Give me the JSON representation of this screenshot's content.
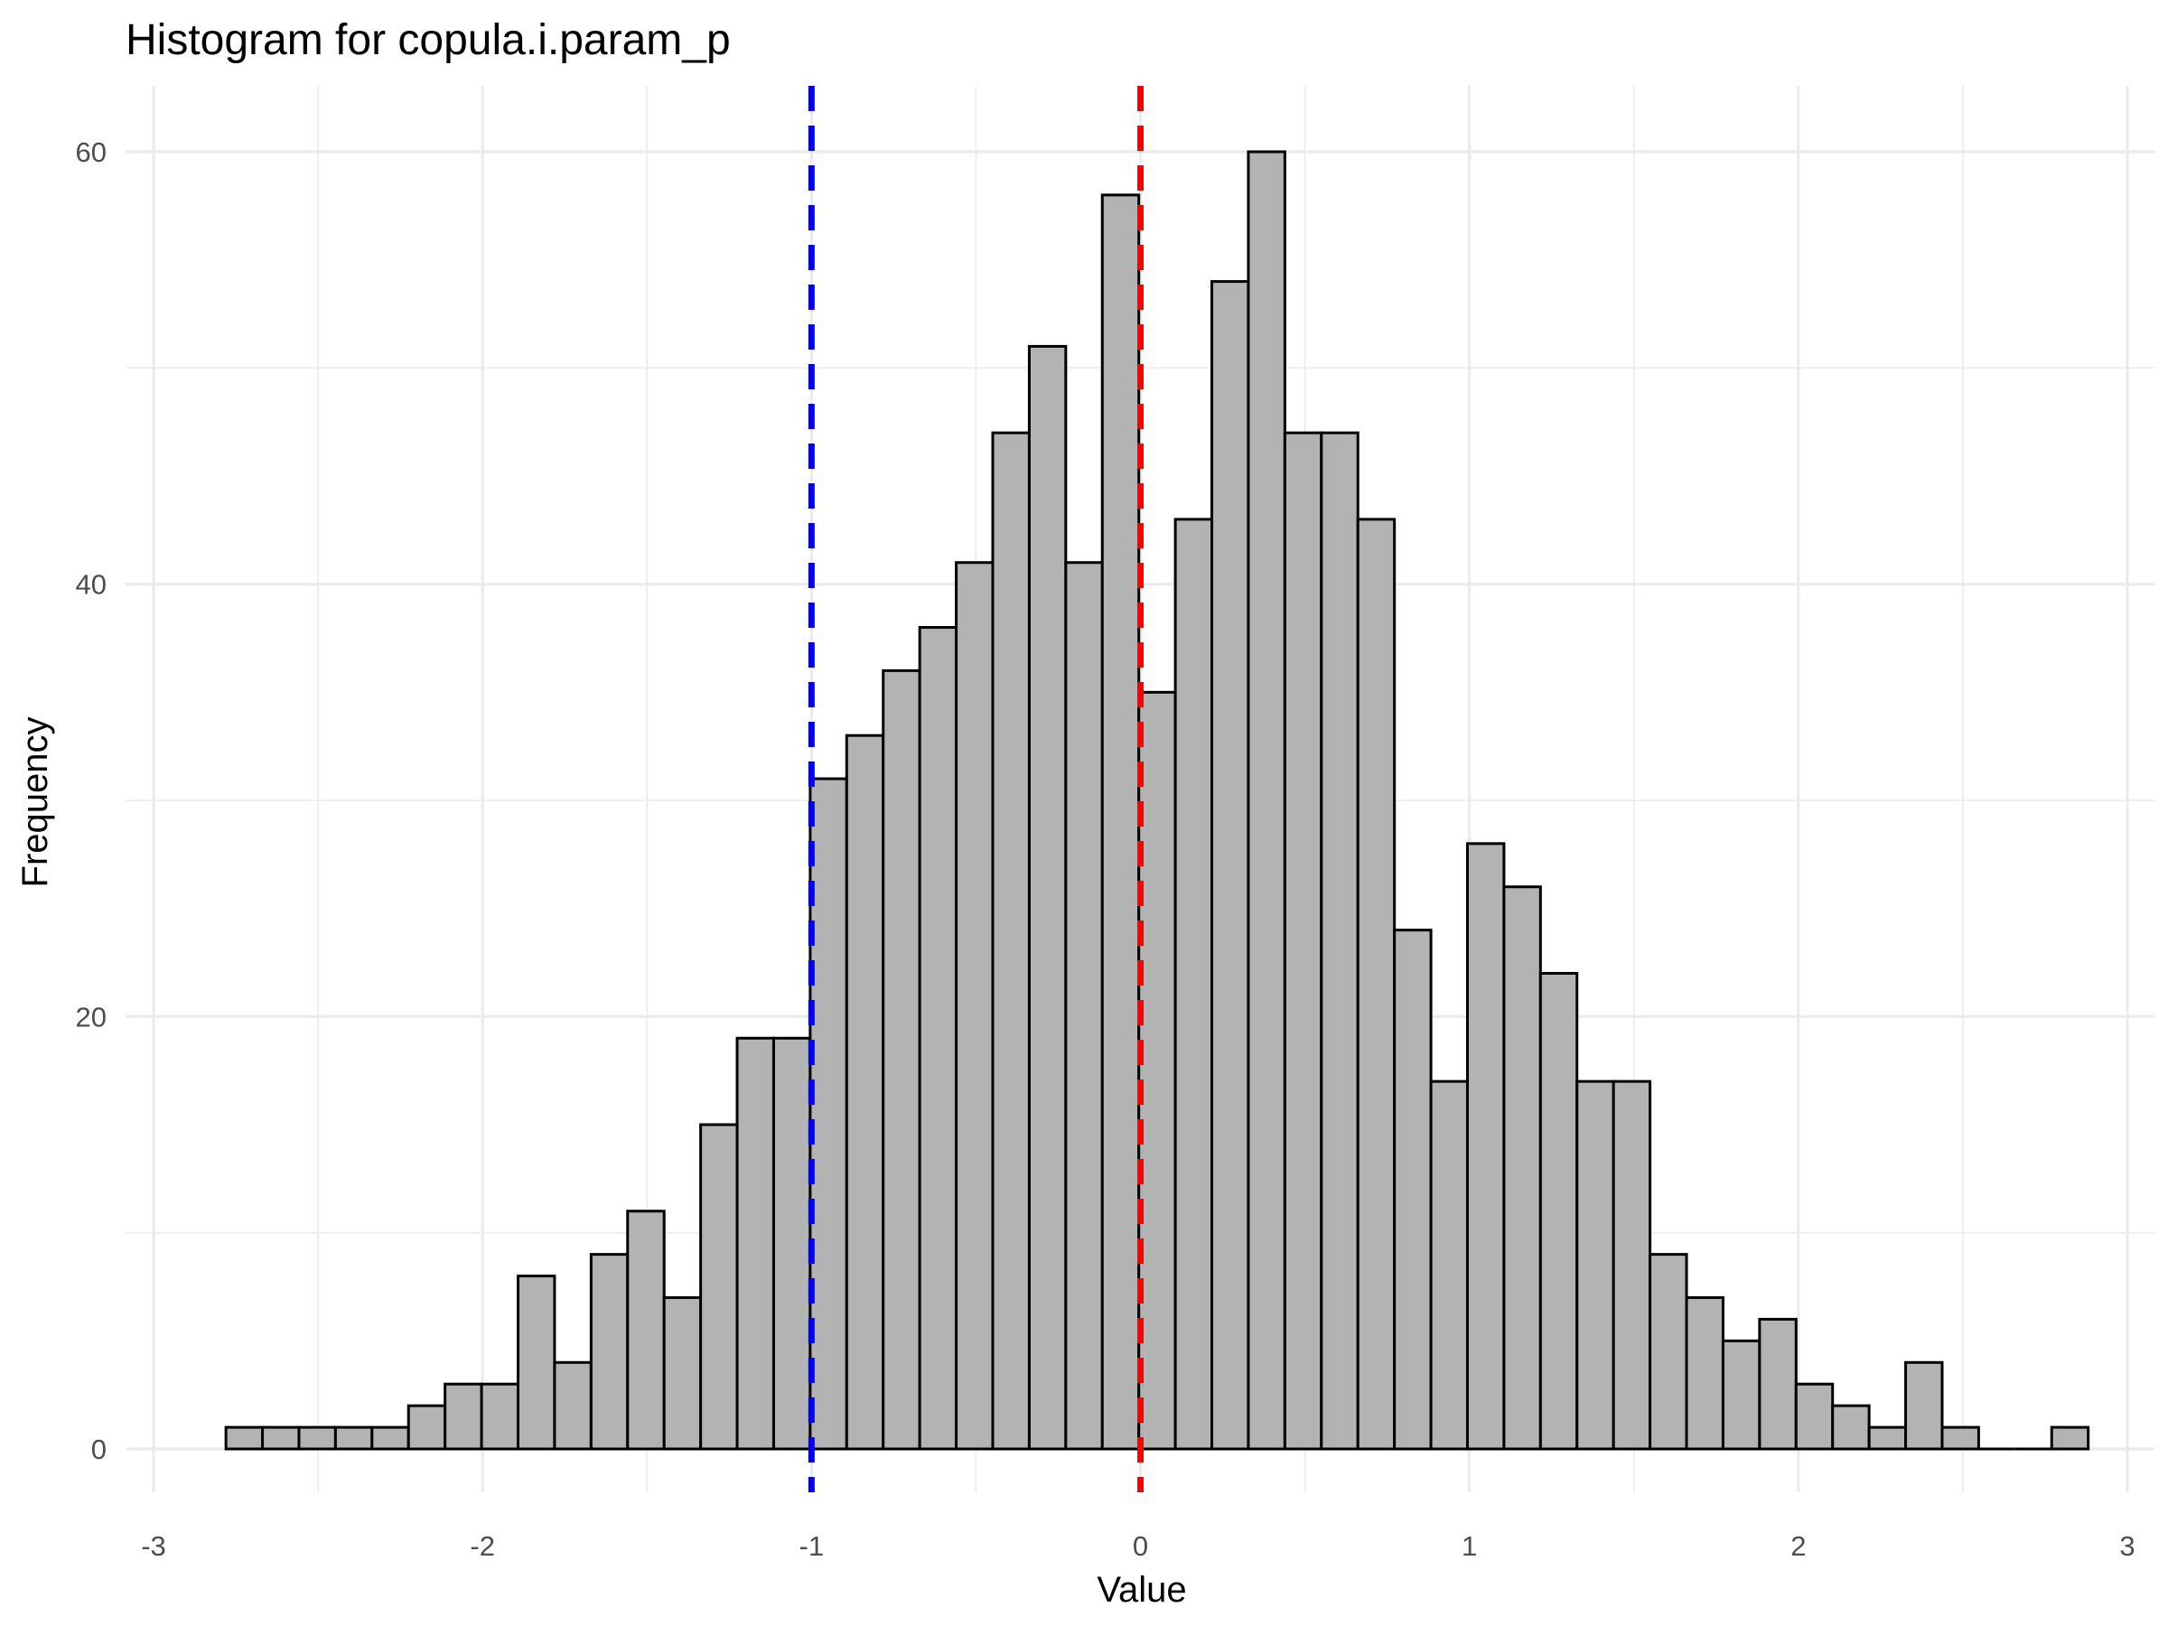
{
  "chart_data": {
    "type": "bar",
    "subtype": "histogram",
    "title": "Histogram for copula.i.param_p",
    "xlabel": "Value",
    "ylabel": "Frequency",
    "xlim": [
      -3.0,
      3.0
    ],
    "ylim": [
      0,
      60
    ],
    "x_ticks": [
      -3,
      -2,
      -1,
      0,
      1,
      2,
      3
    ],
    "x_tick_labels": [
      "-3",
      "-2",
      "-1",
      "0",
      "1",
      "2",
      "3"
    ],
    "y_ticks": [
      0,
      20,
      40,
      60
    ],
    "y_tick_labels": [
      "0",
      "20",
      "40",
      "60"
    ],
    "grid": true,
    "bin_width": 0.111,
    "bin_start": -2.78,
    "counts": [
      1,
      1,
      1,
      1,
      1,
      2,
      3,
      3,
      8,
      4,
      9,
      11,
      7,
      15,
      19,
      19,
      31,
      33,
      36,
      38,
      41,
      47,
      51,
      41,
      58,
      35,
      43,
      54,
      60,
      47,
      47,
      43,
      24,
      17,
      28,
      26,
      22,
      17,
      17,
      9,
      7,
      5,
      6,
      3,
      2,
      1,
      4,
      1,
      0,
      0,
      1
    ],
    "bar_fill": "#b3b3b3",
    "bar_stroke": "#000000",
    "reference_lines": [
      {
        "x": -1.0,
        "color": "#0000ff",
        "style": "dashed"
      },
      {
        "x": 0.0,
        "color": "#ff0000",
        "style": "dashed"
      }
    ]
  }
}
